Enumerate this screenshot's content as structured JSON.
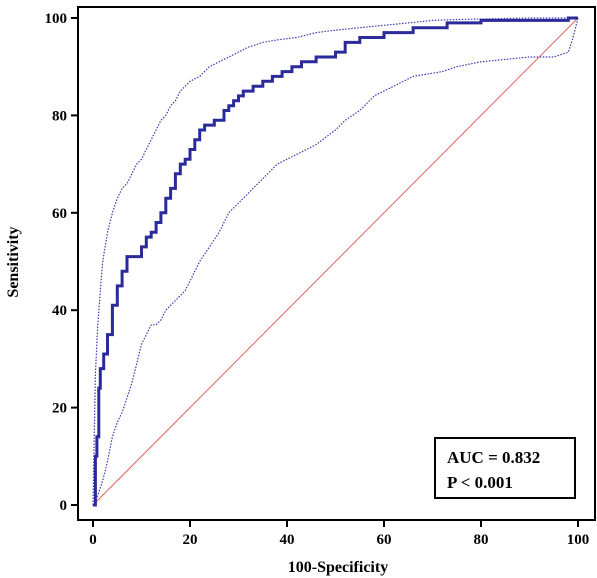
{
  "chart_data": {
    "type": "line",
    "title": "",
    "xlabel": "100-Specificity",
    "ylabel": "Sensitivity",
    "xlim": [
      0,
      100
    ],
    "ylim": [
      0,
      100
    ],
    "xticks": [
      0,
      20,
      40,
      60,
      80,
      100
    ],
    "yticks": [
      0,
      20,
      40,
      60,
      80,
      100
    ],
    "grid": false,
    "annotations": [
      "AUC = 0.832",
      "P < 0.001"
    ],
    "colors": {
      "roc": "#2a2a9a",
      "ci": "#3a3ab0",
      "reference": "#e06060"
    },
    "series": [
      {
        "role": "roc",
        "x": [
          0,
          0.5,
          0.5,
          0.8,
          0.8,
          1.2,
          1.2,
          1.5,
          1.5,
          2.2,
          2.2,
          3,
          3,
          4,
          4,
          5,
          5,
          6,
          6,
          7,
          7,
          10,
          10,
          11,
          11,
          12,
          12,
          13,
          13,
          14,
          14,
          15,
          15,
          16,
          16,
          17,
          17,
          18,
          18,
          19,
          19,
          20,
          20,
          21,
          21,
          22,
          22,
          23,
          23,
          25,
          25,
          27,
          27,
          28,
          28,
          29,
          29,
          30,
          30,
          31,
          31,
          33,
          33,
          35,
          35,
          37,
          37,
          39,
          39,
          41,
          41,
          43,
          43,
          46,
          46,
          50,
          50,
          52,
          52,
          55,
          55,
          60,
          60,
          66,
          66,
          73,
          73,
          80,
          80,
          98,
          98,
          100
        ],
        "y": [
          0,
          0,
          10,
          10,
          14,
          14,
          24,
          24,
          28,
          28,
          31,
          31,
          35,
          35,
          41,
          41,
          45,
          45,
          48,
          48,
          51,
          51,
          53,
          53,
          55,
          55,
          56,
          56,
          58,
          58,
          60,
          60,
          63,
          63,
          65,
          65,
          68,
          68,
          70,
          70,
          71,
          71,
          73,
          73,
          75,
          75,
          77,
          77,
          78,
          78,
          79,
          79,
          81,
          81,
          82,
          82,
          83,
          83,
          84,
          84,
          85,
          85,
          86,
          86,
          87,
          87,
          88,
          88,
          89,
          89,
          90,
          90,
          91,
          91,
          92,
          92,
          93,
          93,
          95,
          95,
          96,
          96,
          97,
          97,
          98,
          98,
          99,
          99,
          99.5,
          99.5,
          100,
          100
        ]
      },
      {
        "role": "ci-upper",
        "x": [
          0,
          0.5,
          1,
          1.5,
          2,
          3,
          4,
          5,
          6,
          7,
          8,
          9,
          10,
          11,
          12,
          13,
          14,
          15,
          16,
          17,
          18,
          19,
          20,
          22,
          24,
          26,
          28,
          30,
          32,
          35,
          38,
          42,
          46,
          50,
          55,
          60,
          65,
          70,
          75,
          80,
          85,
          90,
          95,
          100
        ],
        "y": [
          0,
          27,
          37,
          44,
          50,
          56,
          60,
          63,
          65,
          66,
          68,
          70,
          71,
          73,
          75,
          77,
          79,
          80,
          82,
          83,
          85,
          86,
          87,
          88,
          90,
          91,
          92,
          93,
          94,
          95,
          95.5,
          96,
          97,
          97.5,
          98,
          98.5,
          99,
          99.5,
          99.7,
          99.8,
          99.9,
          100,
          100,
          100
        ]
      },
      {
        "role": "ci-lower",
        "x": [
          0,
          1,
          2,
          3,
          4,
          5,
          6,
          7,
          8,
          9,
          10,
          11,
          12,
          13,
          14,
          15,
          16,
          17,
          18,
          19,
          20,
          22,
          24,
          26,
          28,
          30,
          32,
          35,
          38,
          42,
          46,
          50,
          52,
          55,
          58,
          62,
          66,
          72,
          75,
          80,
          85,
          90,
          95,
          98,
          99,
          100
        ],
        "y": [
          0,
          2,
          5,
          9,
          14,
          17,
          19,
          22,
          25,
          29,
          33,
          35,
          37,
          37,
          38,
          40,
          41,
          42,
          43,
          44,
          46,
          50,
          53,
          56,
          60,
          62,
          64,
          67,
          70,
          72,
          74,
          77,
          79,
          81,
          84,
          86,
          88,
          89,
          90,
          91,
          91.5,
          92,
          92,
          93,
          96,
          100
        ]
      },
      {
        "role": "reference",
        "x": [
          0,
          100
        ],
        "y": [
          0,
          100
        ]
      }
    ]
  }
}
